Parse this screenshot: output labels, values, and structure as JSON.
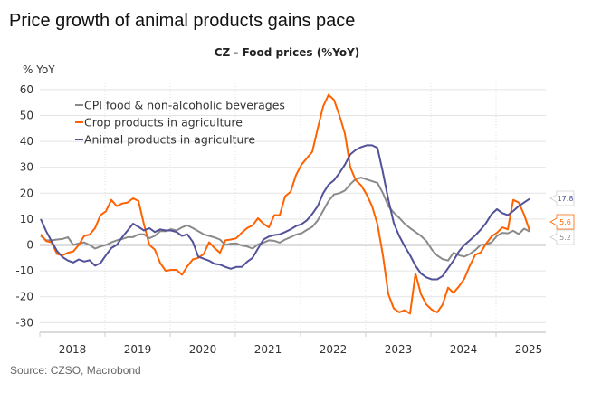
{
  "headline": "Price growth of animal products gains pace",
  "source": "Source: CZSO, Macrobond",
  "chart_data": {
    "type": "line",
    "title": "CZ - Food prices (%YoY)",
    "ylabel": "% YoY",
    "xlabel": "",
    "ylim": [
      -30,
      60
    ],
    "yticks": [
      "60",
      "50",
      "40",
      "30",
      "20",
      "10",
      "0",
      "-10",
      "-20",
      "-30"
    ],
    "x_start": "2018-01",
    "x_end": "2025-07",
    "frequency": "monthly",
    "xticks": [
      "2018",
      "2019",
      "2020",
      "2021",
      "2022",
      "2023",
      "2024",
      "2025"
    ],
    "grid": true,
    "legend_position": "top-left",
    "series": [
      {
        "name": "CPI food & non-alcoholic beverages",
        "color": "#8a8a8a",
        "end_label": "5.2",
        "values": [
          3.5,
          1.8,
          1.8,
          2.1,
          2.3,
          3,
          0,
          0.6,
          1,
          0,
          -1.4,
          -0.6,
          0,
          1,
          1.8,
          2.3,
          3,
          3,
          4.1,
          4.1,
          2.6,
          3.5,
          5.3,
          5.3,
          6.1,
          5.6,
          6.8,
          7.6,
          6.5,
          5.3,
          4.1,
          3.5,
          2.9,
          2.1,
          0,
          0.5,
          0.6,
          -0.2,
          -0.6,
          -1.4,
          0.2,
          0.9,
          1.8,
          1.6,
          0.9,
          2.1,
          3,
          4,
          4.5,
          5.8,
          7,
          9.5,
          13.2,
          17,
          19.5,
          20,
          21,
          23.5,
          25.5,
          26,
          25.3,
          24.6,
          24,
          20,
          15,
          12.5,
          10.5,
          8.2,
          6.5,
          5,
          3.5,
          1.5,
          -1.8,
          -4.1,
          -5.5,
          -6,
          -3,
          -4,
          -4.5,
          -3.5,
          -2,
          0,
          0.2,
          1,
          3.5,
          4.7,
          4.5,
          5.5,
          4.2,
          6.3,
          5.2
        ]
      },
      {
        "name": "Crop products in agriculture",
        "color": "#ff6200",
        "end_label": "5.6",
        "values": [
          4.1,
          1.5,
          1,
          -3.5,
          -4,
          -3,
          -2.5,
          0,
          3.5,
          4,
          6.5,
          11.5,
          13,
          17.4,
          15,
          16,
          16.4,
          18,
          17,
          8,
          0,
          -1.8,
          -7,
          -10,
          -9.6,
          -9.6,
          -11.5,
          -8.2,
          -5.6,
          -5,
          -3.5,
          1,
          -1.2,
          -3,
          1.8,
          2.1,
          2.6,
          4.7,
          6.5,
          7.6,
          10.3,
          8.2,
          6.8,
          11.5,
          11.5,
          18.8,
          20.5,
          27,
          31,
          33.5,
          36,
          45,
          53.5,
          58,
          56,
          50,
          43,
          30,
          25,
          23,
          19.5,
          15,
          8,
          -4,
          -19,
          -24.5,
          -26,
          -25.2,
          -26.5,
          -11,
          -19,
          -23,
          -25,
          -26,
          -23,
          -16.5,
          -18.5,
          -16,
          -13,
          -8,
          -3.8,
          -2.9,
          0.5,
          3.3,
          4.7,
          6.8,
          6,
          17.4,
          16.4,
          11.7,
          5.6
        ]
      },
      {
        "name": "Animal products in agriculture",
        "color": "#525199",
        "end_label": "17.8",
        "values": [
          10,
          5.3,
          1.4,
          -2.3,
          -4.7,
          -6,
          -6.8,
          -5.6,
          -6.4,
          -5.9,
          -8,
          -7,
          -4,
          -1.2,
          0,
          3,
          5.6,
          8.2,
          7,
          5.6,
          6.5,
          5,
          6,
          5.6,
          5.6,
          5,
          3.5,
          4.1,
          1.2,
          -4.5,
          -5.3,
          -6.1,
          -7.3,
          -7.6,
          -8.5,
          -9.2,
          -8.5,
          -8.5,
          -6.5,
          -5,
          -1.4,
          2.1,
          3.2,
          3.8,
          4.1,
          5,
          6,
          7.3,
          8,
          9.5,
          12,
          15,
          20,
          23.3,
          25,
          27.8,
          31,
          35,
          36.7,
          37.8,
          38.5,
          38.5,
          37.5,
          28,
          17.5,
          8.5,
          3.5,
          -0.5,
          -4,
          -8,
          -11,
          -12.5,
          -13.3,
          -13.3,
          -12,
          -9,
          -6,
          -2.5,
          0,
          1.8,
          3.7,
          5.9,
          8.5,
          11.9,
          13.8,
          12.3,
          11.5,
          13.1,
          15,
          16.4,
          17.8
        ]
      }
    ]
  }
}
